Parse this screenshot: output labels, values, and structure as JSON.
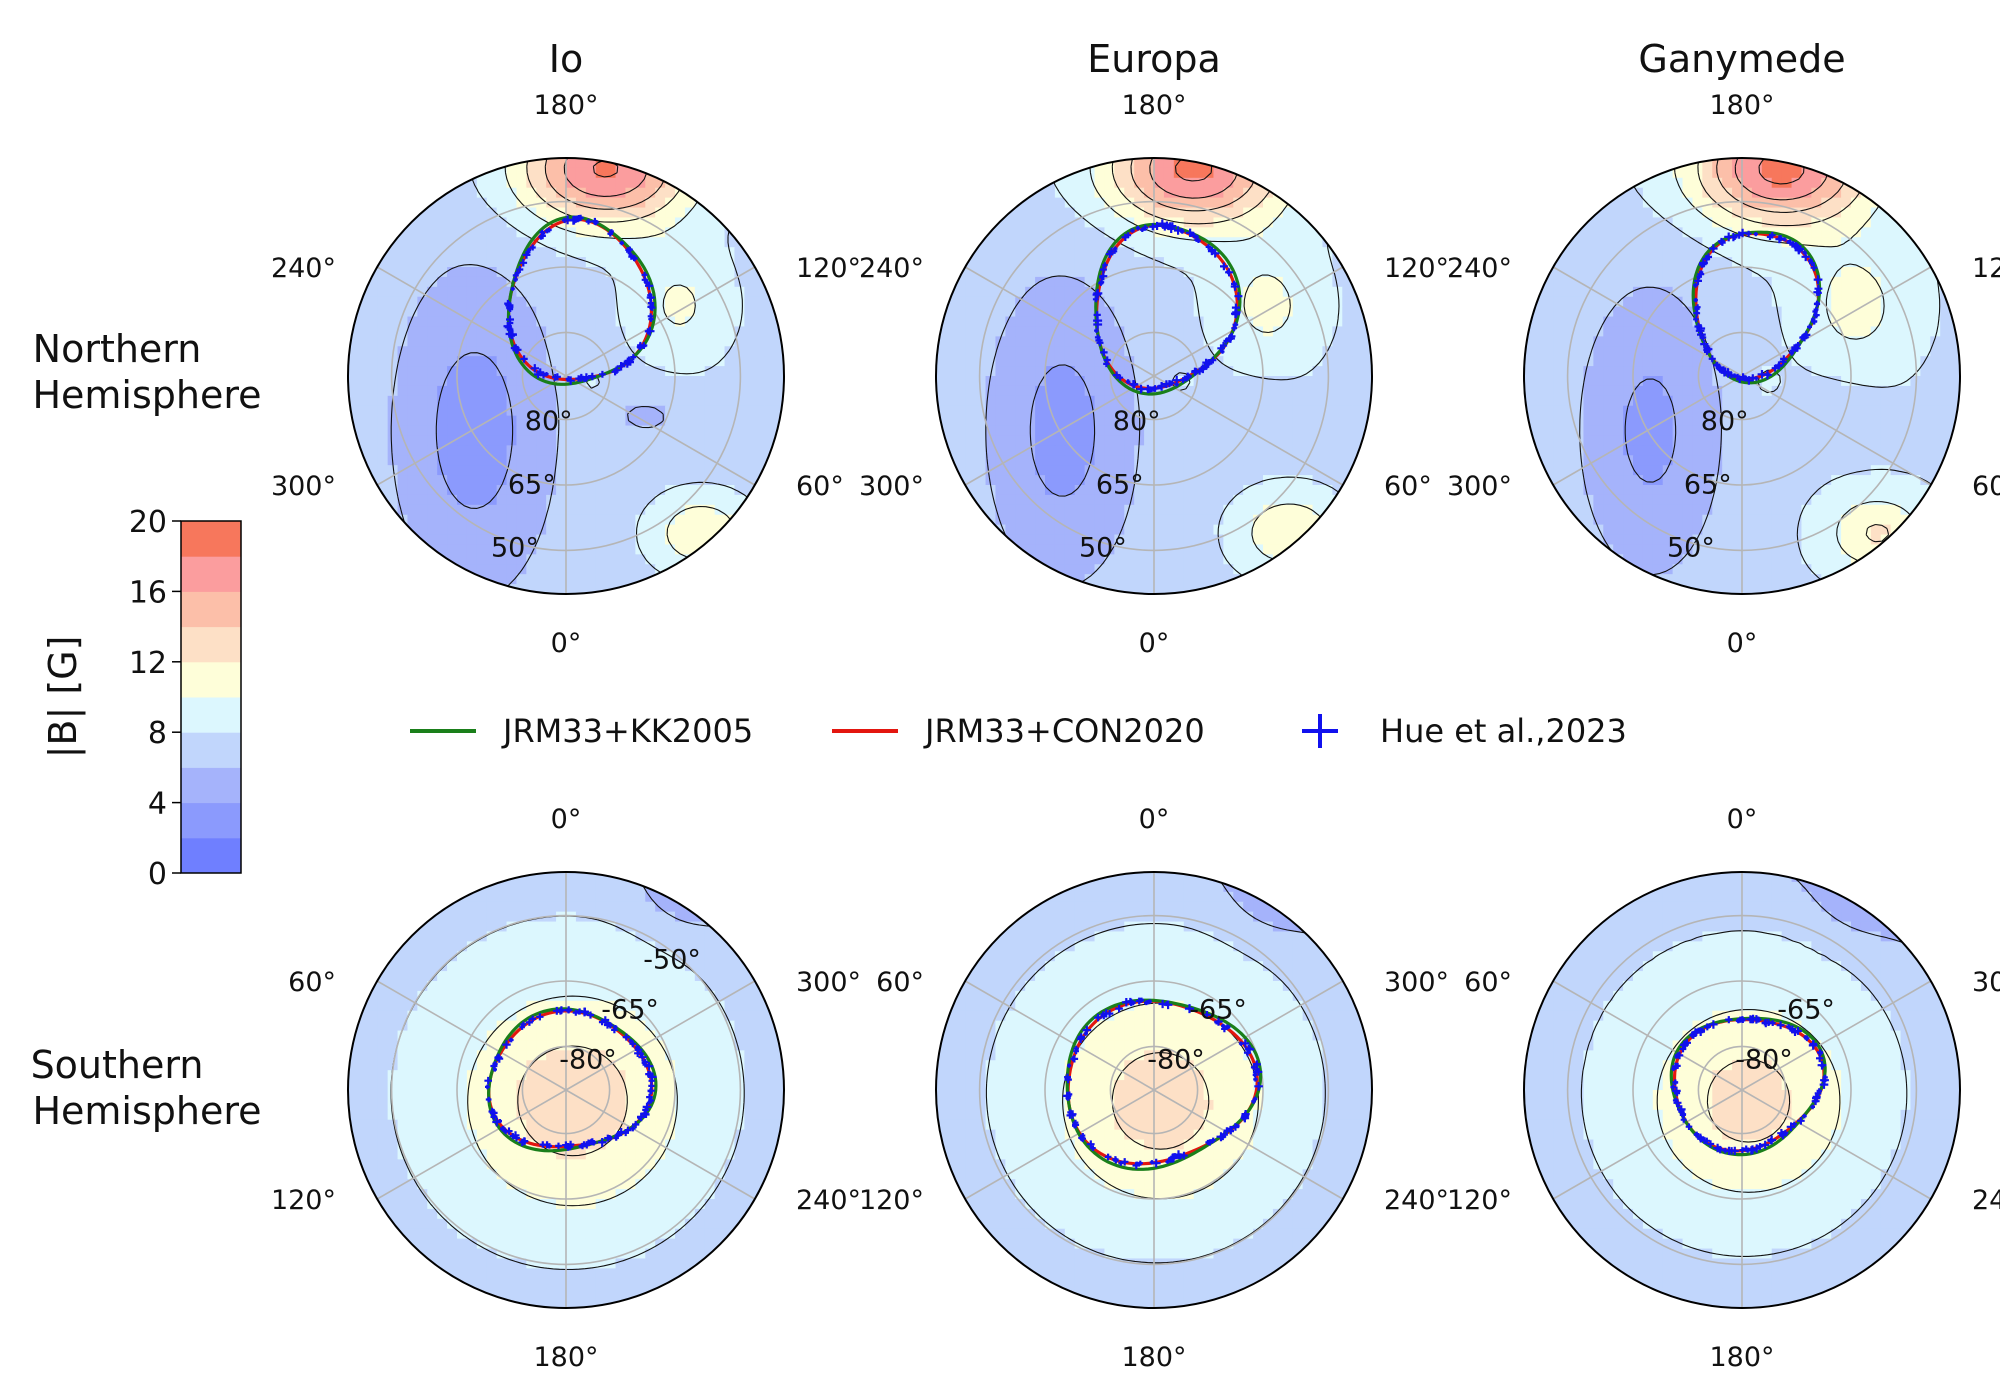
{
  "chart_data": {
    "type": "polar-contour",
    "columns": [
      "Io",
      "Europa",
      "Ganymede"
    ],
    "rows": [
      {
        "label_lines": [
          "Northern",
          "Hemisphere"
        ],
        "hemisphere": "north",
        "angle_labels": {
          "top": "180°",
          "bottom": "0°",
          "upper_left": "240°",
          "upper_right": "120°",
          "lower_left": "300°",
          "lower_right": "60°"
        },
        "rings": [
          80,
          65,
          50
        ]
      },
      {
        "label_lines": [
          "Southern",
          "Hemisphere"
        ],
        "hemisphere": "south",
        "angle_labels": {
          "top": "0°",
          "bottom": "180°",
          "upper_left": "60°",
          "upper_right": "300°",
          "lower_left": "120°",
          "lower_right": "240°"
        },
        "rings": [
          -80,
          -65,
          -50
        ]
      }
    ],
    "ring_labels": {
      "north": [
        [
          "80°",
          "65°",
          "50°"
        ],
        [
          "80°",
          "65°",
          "50°"
        ],
        [
          "80°",
          "65°",
          "50°"
        ]
      ],
      "south": [
        [
          "-80°",
          "-65°",
          "-50°"
        ],
        [
          "-80°",
          "-65°"
        ],
        [
          "-80°",
          "-65°"
        ]
      ]
    },
    "colorbar": {
      "label": "|B| [G]",
      "ticks": [
        "0",
        "4",
        "8",
        "12",
        "16",
        "20"
      ],
      "range": [
        0,
        20
      ],
      "step": 2,
      "colors": [
        "#6f7fff",
        "#8b9afd",
        "#a5b3fb",
        "#c1d6fc",
        "#dcf7fe",
        "#fefed9",
        "#fde0c6",
        "#fcbfa9",
        "#fb9d9e",
        "#f7775c"
      ]
    },
    "legend": [
      {
        "name": "JRM33+KK2005",
        "color": "#1a7f1a",
        "marker": "line"
      },
      {
        "name": "JRM33+CON2020",
        "color": "#e3160f",
        "marker": "line"
      },
      {
        "name": "Hue et al.,2023",
        "color": "#1111ee",
        "marker": "plus"
      }
    ],
    "footprint_ovals": {
      "north": [
        {
          "moon": "Io",
          "center_colat_deg": 17,
          "center_lon_deg": 170,
          "radius_colat_deg": 17
        },
        {
          "moon": "Europa",
          "center_colat_deg": 16,
          "center_lon_deg": 172,
          "radius_colat_deg": 17
        },
        {
          "moon": "Ganymede",
          "center_colat_deg": 17,
          "center_lon_deg": 170,
          "radius_colat_deg": 15
        }
      ],
      "south": [
        {
          "moon": "Io",
          "center_colat_deg": 2,
          "center_lon_deg": 340,
          "radius_colat_deg": 17
        },
        {
          "moon": "Europa",
          "center_colat_deg": 2,
          "center_lon_deg": 330,
          "radius_colat_deg": 20
        },
        {
          "moon": "Ganymede",
          "center_colat_deg": 2,
          "center_lon_deg": 330,
          "radius_colat_deg": 16
        }
      ]
    }
  }
}
